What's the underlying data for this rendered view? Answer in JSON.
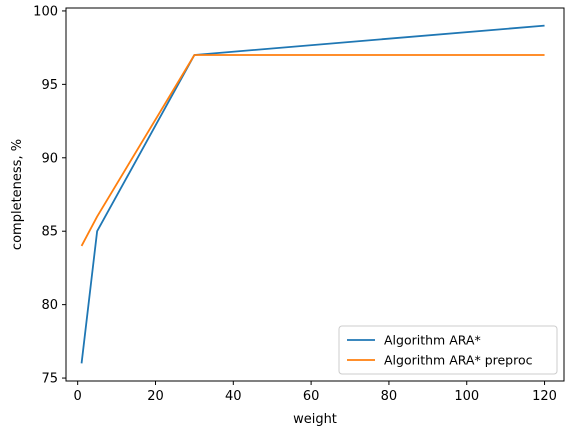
{
  "chart_data": {
    "type": "line",
    "title": "",
    "xlabel": "weight",
    "ylabel": "completeness, %",
    "xlim": [
      -3.0,
      125.0
    ],
    "ylim": [
      74.8,
      100.2
    ],
    "xticks": [
      0,
      20,
      40,
      60,
      80,
      100,
      120
    ],
    "yticks": [
      75,
      80,
      85,
      90,
      95,
      100
    ],
    "grid": false,
    "legend_position": "bottom-right",
    "series": [
      {
        "name": "Algorithm ARA*",
        "color": "#1f77b4",
        "x": [
          1,
          5,
          30,
          120
        ],
        "y": [
          76,
          85,
          97,
          99
        ]
      },
      {
        "name": "Algorithm ARA* preproc",
        "color": "#ff7f0e",
        "x": [
          1,
          5,
          30,
          120
        ],
        "y": [
          84,
          86,
          97,
          97
        ]
      }
    ]
  }
}
